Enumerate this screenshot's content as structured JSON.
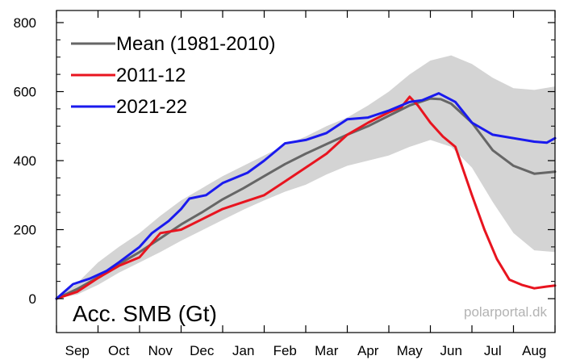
{
  "chart_data": {
    "type": "line",
    "ylabel": "Acc. SMB (Gt)",
    "credit": "polarportal.dk",
    "ylim": [
      0,
      800
    ],
    "yticks": [
      0,
      200,
      400,
      600,
      800
    ],
    "ytick_labels": [
      "0",
      "200",
      "400",
      "600",
      "800"
    ],
    "xlim": [
      0,
      12
    ],
    "months": [
      "Sep",
      "Oct",
      "Nov",
      "Dec",
      "Jan",
      "Feb",
      "Mar",
      "Apr",
      "May",
      "Jun",
      "Jul",
      "Aug"
    ],
    "grid": false,
    "legend_position": "top-left",
    "band": {
      "x": [
        0,
        0.5,
        1,
        1.5,
        2,
        2.5,
        3,
        3.5,
        4,
        4.5,
        5,
        5.5,
        6,
        6.5,
        7,
        7.5,
        8,
        8.5,
        9,
        9.5,
        10,
        10.5,
        11,
        11.5,
        12
      ],
      "lower": [
        0,
        12,
        40,
        75,
        105,
        135,
        168,
        198,
        228,
        258,
        285,
        310,
        330,
        360,
        385,
        400,
        415,
        440,
        460,
        440,
        380,
        280,
        190,
        140,
        135
      ],
      "upper": [
        0,
        45,
        105,
        150,
        190,
        240,
        285,
        320,
        355,
        385,
        415,
        445,
        470,
        500,
        525,
        560,
        600,
        650,
        690,
        705,
        680,
        640,
        610,
        605,
        615
      ],
      "color": "#d4d4d4"
    },
    "series": [
      {
        "name": "Mean (1981-2010)",
        "color": "#666666",
        "x": [
          0,
          0.5,
          1,
          1.5,
          2,
          2.5,
          3,
          3.5,
          4,
          4.5,
          5,
          5.5,
          6,
          6.5,
          7,
          7.5,
          8,
          8.5,
          9,
          9.25,
          9.5,
          10,
          10.5,
          11,
          11.5,
          12
        ],
        "y": [
          0,
          28,
          62,
          100,
          135,
          175,
          215,
          250,
          288,
          320,
          355,
          390,
          420,
          448,
          475,
          500,
          530,
          560,
          580,
          578,
          565,
          510,
          430,
          385,
          362,
          368
        ]
      },
      {
        "name": "2011-12",
        "color": "#e8141f",
        "x": [
          0,
          0.5,
          1,
          1.5,
          2,
          2.5,
          3,
          3.5,
          4,
          4.5,
          5,
          5.5,
          6,
          6.5,
          7,
          7.5,
          8,
          8.3,
          8.5,
          8.7,
          9,
          9.3,
          9.6,
          10,
          10.3,
          10.6,
          10.9,
          11.2,
          11.5,
          11.8,
          12
        ],
        "y": [
          0,
          20,
          60,
          95,
          120,
          190,
          200,
          230,
          260,
          280,
          300,
          340,
          380,
          420,
          475,
          510,
          540,
          555,
          585,
          560,
          510,
          470,
          440,
          300,
          200,
          115,
          55,
          40,
          30,
          35,
          38
        ]
      },
      {
        "name": "2021-22",
        "color": "#1a1aee",
        "x": [
          0,
          0.4,
          0.8,
          1.2,
          1.5,
          2,
          2.3,
          2.7,
          3,
          3.2,
          3.6,
          4,
          4.4,
          4.6,
          5,
          5.5,
          6,
          6.5,
          7,
          7.5,
          8,
          8.5,
          8.8,
          9.2,
          9.6,
          10,
          10.5,
          11,
          11.5,
          11.8,
          12
        ],
        "y": [
          0,
          42,
          58,
          80,
          105,
          150,
          190,
          225,
          260,
          290,
          300,
          335,
          355,
          365,
          400,
          450,
          460,
          480,
          520,
          525,
          545,
          570,
          575,
          595,
          570,
          510,
          475,
          465,
          455,
          452,
          465
        ]
      }
    ]
  }
}
